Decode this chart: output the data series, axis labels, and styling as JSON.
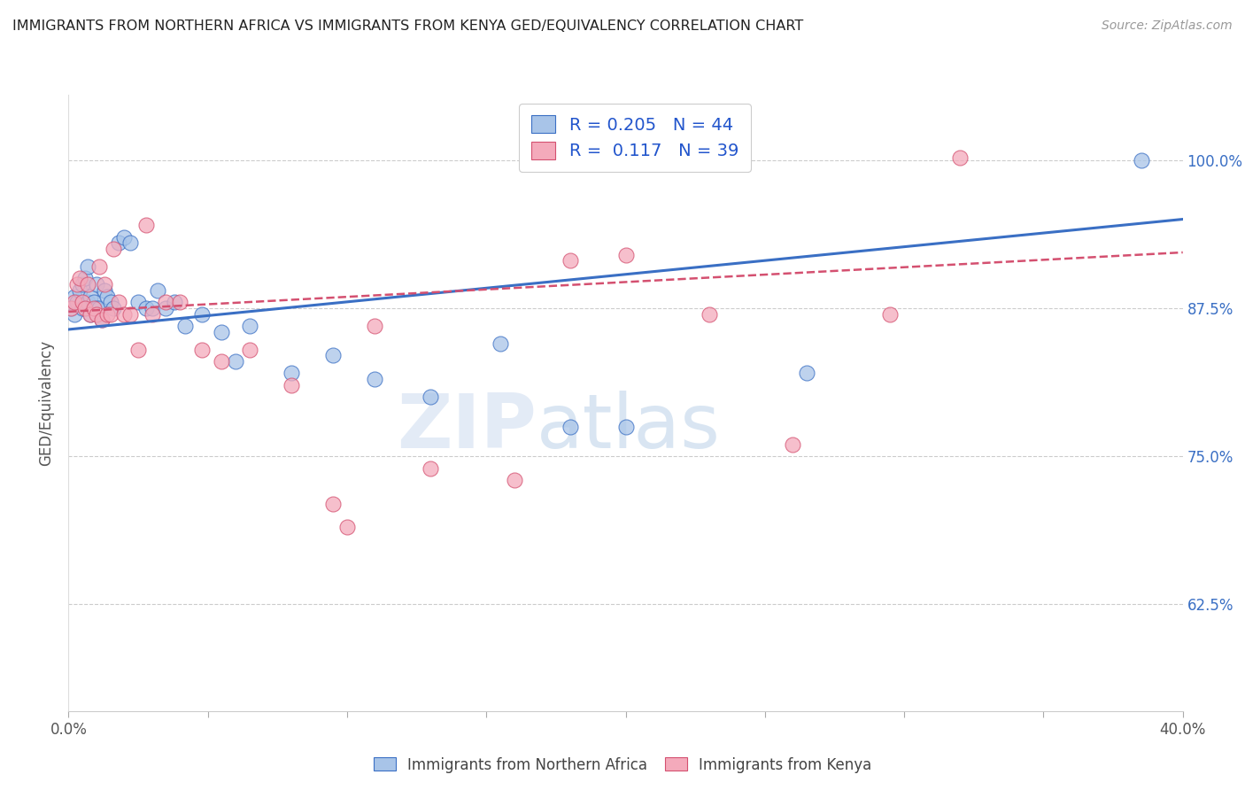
{
  "title": "IMMIGRANTS FROM NORTHERN AFRICA VS IMMIGRANTS FROM KENYA GED/EQUIVALENCY CORRELATION CHART",
  "source": "Source: ZipAtlas.com",
  "ylabel": "GED/Equivalency",
  "yticks": [
    0.625,
    0.75,
    0.875,
    1.0
  ],
  "ytick_labels": [
    "62.5%",
    "75.0%",
    "87.5%",
    "100.0%"
  ],
  "xlim": [
    0.0,
    0.4
  ],
  "ylim": [
    0.535,
    1.055
  ],
  "blue_R": 0.205,
  "blue_N": 44,
  "pink_R": 0.117,
  "pink_N": 39,
  "blue_color": "#A8C4E8",
  "pink_color": "#F4AABB",
  "blue_line_color": "#3A6FC4",
  "pink_line_color": "#D45070",
  "legend_label_blue": "Immigrants from Northern Africa",
  "legend_label_pink": "Immigrants from Kenya",
  "watermark_zip": "ZIP",
  "watermark_atlas": "atlas",
  "blue_x": [
    0.001,
    0.002,
    0.002,
    0.003,
    0.004,
    0.005,
    0.005,
    0.006,
    0.007,
    0.007,
    0.008,
    0.008,
    0.009,
    0.01,
    0.01,
    0.011,
    0.012,
    0.013,
    0.014,
    0.015,
    0.016,
    0.018,
    0.02,
    0.022,
    0.025,
    0.028,
    0.03,
    0.032,
    0.035,
    0.038,
    0.042,
    0.048,
    0.055,
    0.06,
    0.065,
    0.08,
    0.095,
    0.11,
    0.13,
    0.155,
    0.18,
    0.2,
    0.265,
    0.385
  ],
  "blue_y": [
    0.875,
    0.885,
    0.87,
    0.88,
    0.89,
    0.895,
    0.875,
    0.9,
    0.91,
    0.88,
    0.885,
    0.87,
    0.88,
    0.875,
    0.895,
    0.875,
    0.865,
    0.89,
    0.885,
    0.88,
    0.875,
    0.93,
    0.935,
    0.93,
    0.88,
    0.875,
    0.875,
    0.89,
    0.875,
    0.88,
    0.86,
    0.87,
    0.855,
    0.83,
    0.86,
    0.82,
    0.835,
    0.815,
    0.8,
    0.845,
    0.775,
    0.775,
    0.82,
    1.0
  ],
  "pink_x": [
    0.001,
    0.002,
    0.003,
    0.004,
    0.005,
    0.006,
    0.007,
    0.008,
    0.009,
    0.01,
    0.011,
    0.012,
    0.013,
    0.014,
    0.015,
    0.016,
    0.018,
    0.02,
    0.022,
    0.025,
    0.028,
    0.03,
    0.035,
    0.04,
    0.048,
    0.055,
    0.065,
    0.08,
    0.095,
    0.1,
    0.11,
    0.13,
    0.16,
    0.18,
    0.2,
    0.23,
    0.26,
    0.295,
    0.32
  ],
  "pink_y": [
    0.875,
    0.88,
    0.895,
    0.9,
    0.88,
    0.875,
    0.895,
    0.87,
    0.875,
    0.87,
    0.91,
    0.865,
    0.895,
    0.87,
    0.87,
    0.925,
    0.88,
    0.87,
    0.87,
    0.84,
    0.945,
    0.87,
    0.88,
    0.88,
    0.84,
    0.83,
    0.84,
    0.81,
    0.71,
    0.69,
    0.86,
    0.74,
    0.73,
    0.915,
    0.92,
    0.87,
    0.76,
    0.87,
    1.002
  ],
  "blue_trend_x": [
    0.0,
    0.4
  ],
  "blue_trend_y": [
    0.857,
    0.95
  ],
  "pink_trend_x": [
    0.0,
    0.4
  ],
  "pink_trend_y": [
    0.872,
    0.922
  ]
}
